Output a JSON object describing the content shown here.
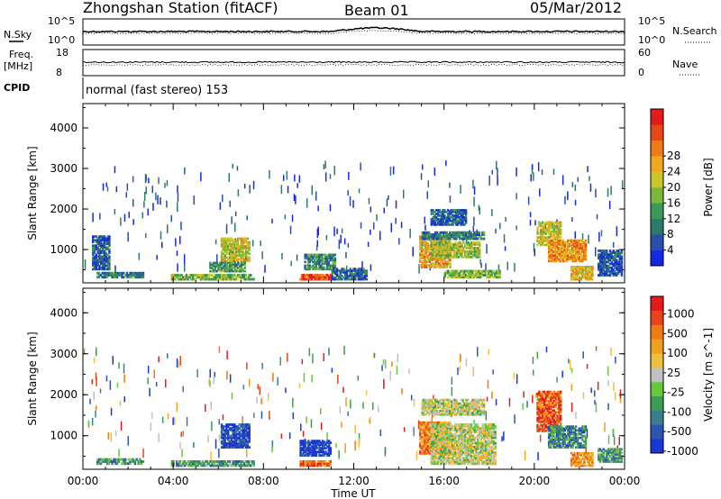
{
  "header": {
    "title": "Zhongshan Station (fitACF)",
    "beam": "Beam 01",
    "date": "05/Mar/2012"
  },
  "strips": {
    "nsky": {
      "label": "N.Sky",
      "ytop": "10^5",
      "ybottom": "10^0"
    },
    "nsearch": {
      "label": "N.Search",
      "ytop": "10^5",
      "ybottom": "10^0"
    },
    "freq": {
      "label_top": "Freq.",
      "label_bottom": "[MHz]",
      "ytop": "18",
      "ybottom": "8"
    },
    "nave": {
      "label": "Nave",
      "ytop": "60",
      "ybottom": "0"
    },
    "cpid": {
      "label": "CPID",
      "value": "normal (fast stereo) 153"
    }
  },
  "chart_data": [
    {
      "type": "heatmap",
      "name": "power",
      "ylabel": "Slant Range [km]",
      "xlabel": "Time UT",
      "x_ticks": [
        "00:00",
        "04:00",
        "08:00",
        "12:00",
        "16:00",
        "20:00",
        "00:00"
      ],
      "y_ticks": [
        1000,
        2000,
        3000,
        4000
      ],
      "ylim": [
        180,
        4600
      ],
      "xlim_hours": [
        0,
        24
      ],
      "colorbar": {
        "label": "Power [dB]",
        "ticks": [
          4,
          8,
          12,
          16,
          20,
          24,
          28
        ],
        "colors": [
          "#1428e6",
          "#2850a8",
          "#2c7a6a",
          "#3c9a58",
          "#7ab83a",
          "#c8c82a",
          "#f0a81c",
          "#f07a14",
          "#e84818",
          "#e01c1c"
        ]
      },
      "regions": [
        {
          "t0": 0.6,
          "t1": 2.7,
          "r0": 300,
          "r1": 450,
          "level": 0.28
        },
        {
          "t0": 0.4,
          "t1": 1.2,
          "r0": 500,
          "r1": 1350,
          "level": 0.15
        },
        {
          "t0": 3.9,
          "t1": 7.6,
          "r0": 250,
          "r1": 400,
          "level": 0.45
        },
        {
          "t0": 6.1,
          "t1": 7.4,
          "r0": 700,
          "r1": 1300,
          "level": 0.55
        },
        {
          "t0": 5.6,
          "t1": 7.2,
          "r0": 450,
          "r1": 700,
          "level": 0.35
        },
        {
          "t0": 9.6,
          "t1": 11.0,
          "r0": 250,
          "r1": 400,
          "level": 0.9
        },
        {
          "t0": 9.8,
          "t1": 11.2,
          "r0": 500,
          "r1": 900,
          "level": 0.3
        },
        {
          "t0": 11.0,
          "t1": 12.6,
          "r0": 250,
          "r1": 550,
          "level": 0.2
        },
        {
          "t0": 14.9,
          "t1": 16.3,
          "r0": 550,
          "r1": 1350,
          "level": 0.65
        },
        {
          "t0": 15.4,
          "t1": 17.6,
          "r0": 800,
          "r1": 1200,
          "level": 0.5
        },
        {
          "t0": 15.0,
          "t1": 17.8,
          "r0": 1250,
          "r1": 1450,
          "level": 0.25
        },
        {
          "t0": 15.4,
          "t1": 17.0,
          "r0": 1600,
          "r1": 2000,
          "level": 0.2
        },
        {
          "t0": 16.0,
          "t1": 18.5,
          "r0": 300,
          "r1": 500,
          "level": 0.45
        },
        {
          "t0": 20.1,
          "t1": 21.2,
          "r0": 1100,
          "r1": 1700,
          "level": 0.55
        },
        {
          "t0": 20.6,
          "t1": 22.3,
          "r0": 700,
          "r1": 1250,
          "level": 0.7
        },
        {
          "t0": 21.6,
          "t1": 22.6,
          "r0": 250,
          "r1": 600,
          "level": 0.6
        },
        {
          "t0": 22.8,
          "t1": 23.9,
          "r0": 350,
          "r1": 1000,
          "level": 0.15
        }
      ]
    },
    {
      "type": "heatmap",
      "name": "velocity",
      "ylabel": "Slant Range [km]",
      "xlabel": "Time UT",
      "x_ticks": [
        "00:00",
        "04:00",
        "08:00",
        "12:00",
        "16:00",
        "20:00",
        "00:00"
      ],
      "y_ticks": [
        1000,
        2000,
        3000,
        4000
      ],
      "ylim": [
        180,
        4600
      ],
      "xlim_hours": [
        0,
        24
      ],
      "colorbar": {
        "label": "Velocity [m s^-1]",
        "ticks": [
          "1000",
          "500",
          "100",
          "25",
          "-25",
          "-100",
          "-500",
          "-1000"
        ],
        "colors": [
          "#1c36d6",
          "#2c54b0",
          "#3a7e8e",
          "#3c9c52",
          "#66c83a",
          "#c0c0c0",
          "#f0c03c",
          "#f0a01c",
          "#f07a14",
          "#e84418",
          "#e01c1c"
        ]
      },
      "regions": [
        {
          "t0": 0.6,
          "t1": 2.7,
          "r0": 300,
          "r1": 450,
          "level": 0.3
        },
        {
          "t0": 3.9,
          "t1": 7.6,
          "r0": 250,
          "r1": 400,
          "level": 0.3
        },
        {
          "t0": 6.1,
          "t1": 7.4,
          "r0": 700,
          "r1": 1300,
          "level": 0.1
        },
        {
          "t0": 9.6,
          "t1": 11.0,
          "r0": 500,
          "r1": 900,
          "level": 0.05
        },
        {
          "t0": 9.6,
          "t1": 11.0,
          "r0": 250,
          "r1": 400,
          "level": 0.8
        },
        {
          "t0": 14.9,
          "t1": 16.3,
          "r0": 550,
          "r1": 1350,
          "level": 0.75
        },
        {
          "t0": 15.4,
          "t1": 18.3,
          "r0": 300,
          "r1": 1300,
          "level": 0.5
        },
        {
          "t0": 15.0,
          "t1": 17.8,
          "r0": 1500,
          "r1": 1900,
          "level": 0.5
        },
        {
          "t0": 20.1,
          "t1": 21.2,
          "r0": 1100,
          "r1": 2100,
          "level": 0.85
        },
        {
          "t0": 20.6,
          "t1": 22.3,
          "r0": 700,
          "r1": 1250,
          "level": 0.25
        },
        {
          "t0": 21.6,
          "t1": 22.6,
          "r0": 250,
          "r1": 600,
          "level": 0.7
        },
        {
          "t0": 22.8,
          "t1": 23.9,
          "r0": 350,
          "r1": 700,
          "level": 0.3
        }
      ]
    }
  ],
  "colors": {
    "axis": "#000000",
    "ground_scatter": "#c0c0c0"
  }
}
